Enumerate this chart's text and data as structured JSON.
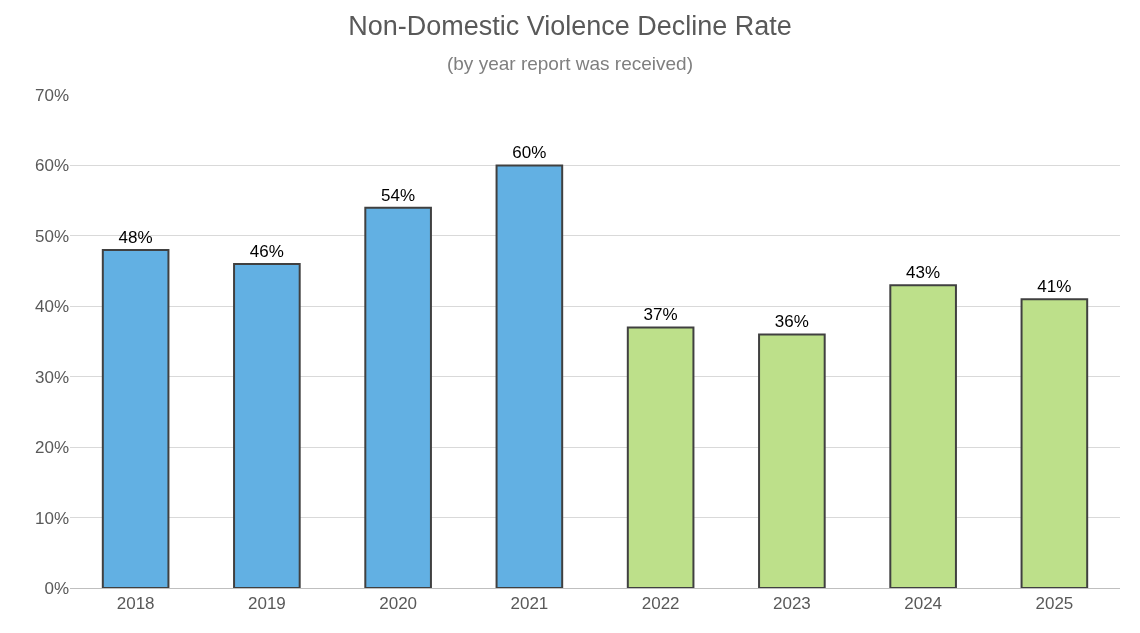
{
  "chart_data": {
    "type": "bar",
    "title": "Non-Domestic Violence Decline Rate",
    "subtitle": "(by year report was received)",
    "categories": [
      "2018",
      "2019",
      "2020",
      "2021",
      "2022",
      "2023",
      "2024",
      "2025"
    ],
    "values": [
      48,
      46,
      54,
      60,
      37,
      36,
      43,
      41
    ],
    "value_labels": [
      "48%",
      "46%",
      "54%",
      "60%",
      "37%",
      "36%",
      "43%",
      "41%"
    ],
    "colors": [
      "#62b0e3",
      "#62b0e3",
      "#62b0e3",
      "#62b0e3",
      "#bde08a",
      "#bde08a",
      "#bde08a",
      "#bde08a"
    ],
    "ylim": [
      0,
      70
    ],
    "yticks": [
      {
        "value": 0,
        "label": "0%"
      },
      {
        "value": 10,
        "label": "10%"
      },
      {
        "value": 20,
        "label": "20%"
      },
      {
        "value": 30,
        "label": "30%"
      },
      {
        "value": 40,
        "label": "40%"
      },
      {
        "value": 50,
        "label": "50%"
      },
      {
        "value": 60,
        "label": "60%"
      },
      {
        "value": 70,
        "label": "70%"
      }
    ],
    "grid": "y",
    "legend": false
  }
}
